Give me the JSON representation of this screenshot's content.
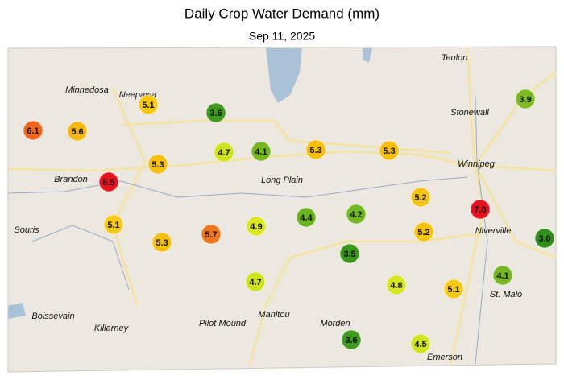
{
  "header": {
    "title": "Daily Crop Water Demand (mm)",
    "subtitle": "Sep 11, 2025"
  },
  "places": [
    "Teulon",
    "Minnedosa",
    "Neepawa",
    "Stonewall",
    "Winnipeg",
    "Brandon",
    "Long Plain",
    "Souris",
    "Niverville",
    "St. Malo",
    "Boissevain",
    "Killarney",
    "Pilot Mound",
    "Manitou",
    "Morden",
    "Emerson"
  ],
  "stations": {
    "values": [
      6.1,
      5.6,
      5.1,
      3.6,
      4.7,
      4.1,
      5.3,
      5.3,
      3.9,
      5.3,
      6.5,
      5.1,
      5.3,
      5.7,
      4.9,
      4.4,
      4.2,
      5.2,
      7,
      5.2,
      3,
      3.5,
      4.7,
      4.8,
      5.1,
      4.1,
      3.6,
      4.5
    ],
    "value_labels": [
      "6.1",
      "5.6",
      "5.1",
      "3.6",
      "4.7",
      "4.1",
      "5.3",
      "5.3",
      "3.9",
      "5.3",
      "6.5",
      "5.1",
      "5.3",
      "5.7",
      "4.9",
      "4.4",
      "4.2",
      "5.2",
      "7.0",
      "5.2",
      "3.0",
      "3.5",
      "4.7",
      "4.8",
      "5.1",
      "4.1",
      "3.6",
      "4.5"
    ],
    "colors": [
      "#f0651c",
      "#f6b90a",
      "#f8c90f",
      "#3f9a1e",
      "#cfe31b",
      "#74b71e",
      "#f6c00a",
      "#f6c00a",
      "#7dbc1e",
      "#f6c00a",
      "#e8121e",
      "#f8c90f",
      "#f6c00a",
      "#f07418",
      "#dde81b",
      "#6ab51e",
      "#70b81e",
      "#f6c40c",
      "#e8121e",
      "#f6c40c",
      "#2f8f1a",
      "#3a971c",
      "#cfe31b",
      "#d8e61b",
      "#f8c90f",
      "#74b71e",
      "#3f9a1e",
      "#d2e41b"
    ]
  }
}
